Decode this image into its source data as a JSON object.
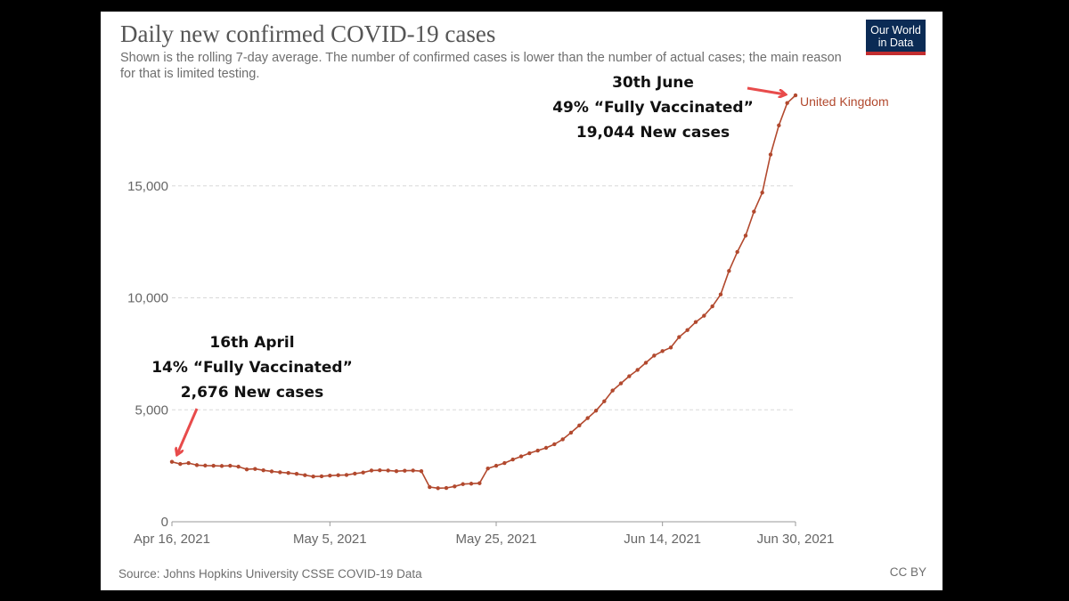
{
  "header": {
    "title": "Daily new confirmed COVID-19 cases",
    "subtitle": "Shown is the rolling 7-day average. The number of confirmed cases is lower than the number of actual cases; the main reason for that is limited testing."
  },
  "logo": {
    "line1": "Our World",
    "line2": "in Data"
  },
  "footer": {
    "source": "Source: Johns Hopkins University CSSE COVID-19 Data",
    "license": "CC BY"
  },
  "colors": {
    "line": "#b2492e",
    "arrow": "#e84b4b",
    "grid": "#d8d8d8",
    "axis": "#999999"
  },
  "annotations": {
    "start": {
      "line1": "16th April",
      "line2": "14% “Fully Vaccinated”",
      "line3": "2,676 New cases"
    },
    "end": {
      "line1": "30th June",
      "line2": "49% “Fully Vaccinated”",
      "line3": "19,044 New cases"
    }
  },
  "chart_data": {
    "type": "line",
    "title": "Daily new confirmed COVID-19 cases",
    "xlabel": "",
    "ylabel": "",
    "ylim": [
      0,
      20000
    ],
    "yticks": [
      {
        "value": 0,
        "label": "0"
      },
      {
        "value": 5000,
        "label": "5,000"
      },
      {
        "value": 10000,
        "label": "10,000"
      },
      {
        "value": 15000,
        "label": "15,000"
      }
    ],
    "xticks": [
      {
        "day": 0,
        "label": "Apr 16, 2021"
      },
      {
        "day": 19,
        "label": "May 5, 2021"
      },
      {
        "day": 39,
        "label": "May 25, 2021"
      },
      {
        "day": 59,
        "label": "Jun 14, 2021"
      },
      {
        "day": 75,
        "label": "Jun 30, 2021"
      }
    ],
    "series": [
      {
        "name": "United Kingdom",
        "values": [
          2676,
          2580,
          2620,
          2530,
          2510,
          2500,
          2490,
          2500,
          2460,
          2340,
          2360,
          2300,
          2250,
          2210,
          2180,
          2140,
          2080,
          2020,
          2030,
          2060,
          2080,
          2090,
          2150,
          2200,
          2290,
          2300,
          2290,
          2260,
          2280,
          2290,
          2260,
          1550,
          1500,
          1510,
          1580,
          1680,
          1700,
          1720,
          2380,
          2500,
          2620,
          2780,
          2920,
          3060,
          3180,
          3300,
          3460,
          3680,
          3980,
          4300,
          4630,
          4960,
          5380,
          5860,
          6180,
          6500,
          6780,
          7100,
          7420,
          7620,
          7780,
          8250,
          8560,
          8920,
          9200,
          9620,
          10150,
          11200,
          12050,
          12780,
          13850,
          14700,
          16400,
          17700,
          18700,
          19044
        ]
      }
    ]
  }
}
